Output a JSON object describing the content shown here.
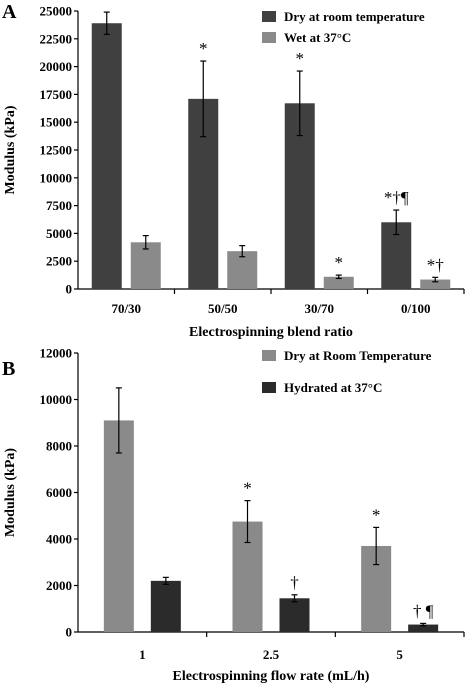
{
  "chart_data": [
    {
      "type": "bar",
      "panel": "A",
      "categories": [
        "70/30",
        "50/50",
        "30/70",
        "0/100"
      ],
      "series": [
        {
          "name": "Dry at room temperature",
          "color": "#404040",
          "values": [
            23900,
            17100,
            16700,
            6000
          ],
          "errors": [
            1000,
            3400,
            2900,
            1100
          ],
          "annotations": [
            "",
            "*",
            "*",
            "*†¶"
          ]
        },
        {
          "name": "Wet at 37°C",
          "color": "#8a8a8a",
          "values": [
            4200,
            3400,
            1100,
            850
          ],
          "errors": [
            600,
            500,
            150,
            200
          ],
          "annotations": [
            "",
            "",
            "*",
            "*†"
          ]
        }
      ],
      "xlabel": "Electrospinning blend ratio",
      "ylabel": "Modulus (kPa)",
      "ylim": [
        0,
        25000
      ],
      "yticks": [
        0,
        2500,
        5000,
        7500,
        10000,
        12500,
        15000,
        17500,
        20000,
        22500,
        25000
      ],
      "legend": "top-right",
      "grid": false
    },
    {
      "type": "bar",
      "panel": "B",
      "categories": [
        "1",
        "2.5",
        "5"
      ],
      "series": [
        {
          "name": "Dry at Room Temperature",
          "color": "#8a8a8a",
          "values": [
            9100,
            4750,
            3700
          ],
          "errors": [
            1400,
            900,
            800
          ],
          "annotations": [
            "",
            "*",
            "*"
          ]
        },
        {
          "name": "Hydrated at 37°C",
          "color": "#2b2b2b",
          "values": [
            2200,
            1450,
            320
          ],
          "errors": [
            150,
            150,
            50
          ],
          "annotations": [
            "",
            "†",
            "† ¶"
          ]
        }
      ],
      "xlabel": "Electrospinning flow rate (mL/h)",
      "ylabel": "Modulus (kPa)",
      "ylim": [
        0,
        12000
      ],
      "yticks": [
        0,
        2000,
        4000,
        6000,
        8000,
        10000,
        12000
      ],
      "legend": "top-right",
      "grid": false
    }
  ]
}
